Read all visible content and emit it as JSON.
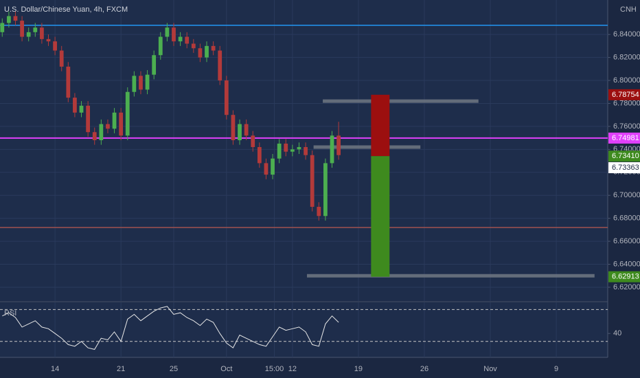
{
  "chart_data": [
    {
      "type": "candlestick",
      "title": "U.S. Dollar/Chinese Yuan, 4h, FXCM",
      "currency": "CNH",
      "x": [
        -4,
        -3.5,
        -3,
        -2.5,
        -2,
        -1.5,
        -1,
        -0.5,
        0,
        0.5,
        1,
        1.5,
        2,
        2.5,
        3,
        3.5,
        4,
        4.5,
        5,
        5.5,
        6,
        6.5,
        7,
        7.5,
        8,
        8.5,
        9,
        9.5,
        10,
        10.5,
        11,
        11.5,
        12,
        12.5,
        13,
        13.5,
        14,
        14.5,
        15,
        15.5,
        16,
        16.5,
        17,
        17.5,
        18,
        18.5,
        19,
        19.5,
        20,
        20.5,
        21,
        21.5
      ],
      "open": [
        6.842,
        6.85,
        6.856,
        6.852,
        6.838,
        6.842,
        6.846,
        6.836,
        6.834,
        6.826,
        6.812,
        6.785,
        6.772,
        6.778,
        6.755,
        6.748,
        6.762,
        6.758,
        6.772,
        6.752,
        6.79,
        6.804,
        6.792,
        6.805,
        6.822,
        6.838,
        6.846,
        6.834,
        6.838,
        6.832,
        6.828,
        6.82,
        6.83,
        6.826,
        6.8,
        6.77,
        6.748,
        6.762,
        6.752,
        6.742,
        6.728,
        6.718,
        6.732,
        6.745,
        6.738,
        6.74,
        6.742,
        6.735,
        6.69,
        6.682,
        6.728,
        6.752
      ],
      "high": [
        6.854,
        6.86,
        6.86,
        6.856,
        6.846,
        6.85,
        6.85,
        6.84,
        6.838,
        6.83,
        6.816,
        6.789,
        6.782,
        6.782,
        6.759,
        6.766,
        6.766,
        6.776,
        6.776,
        6.794,
        6.808,
        6.808,
        6.809,
        6.826,
        6.842,
        6.85,
        6.85,
        6.842,
        6.842,
        6.836,
        6.832,
        6.834,
        6.834,
        6.83,
        6.804,
        6.774,
        6.766,
        6.766,
        6.756,
        6.746,
        6.732,
        6.736,
        6.749,
        6.749,
        6.744,
        6.746,
        6.746,
        6.739,
        6.694,
        6.732,
        6.756,
        6.764
      ],
      "low": [
        6.838,
        6.846,
        6.848,
        6.834,
        6.834,
        6.838,
        6.832,
        6.83,
        6.822,
        6.808,
        6.781,
        6.768,
        6.768,
        6.751,
        6.744,
        6.744,
        6.754,
        6.754,
        6.748,
        6.748,
        6.786,
        6.788,
        6.788,
        6.801,
        6.818,
        6.834,
        6.83,
        6.83,
        6.828,
        6.824,
        6.816,
        6.816,
        6.822,
        6.796,
        6.766,
        6.744,
        6.744,
        6.748,
        6.738,
        6.724,
        6.714,
        6.714,
        6.728,
        6.734,
        6.734,
        6.736,
        6.731,
        6.686,
        6.678,
        6.678,
        6.724,
        6.731
      ],
      "close": [
        6.85,
        6.856,
        6.852,
        6.838,
        6.842,
        6.846,
        6.836,
        6.834,
        6.826,
        6.812,
        6.785,
        6.772,
        6.778,
        6.755,
        6.748,
        6.762,
        6.758,
        6.772,
        6.752,
        6.79,
        6.804,
        6.792,
        6.805,
        6.822,
        6.838,
        6.846,
        6.834,
        6.838,
        6.832,
        6.828,
        6.82,
        6.83,
        6.826,
        6.8,
        6.77,
        6.748,
        6.762,
        6.752,
        6.742,
        6.728,
        6.718,
        6.732,
        6.745,
        6.738,
        6.74,
        6.742,
        6.735,
        6.69,
        6.682,
        6.728,
        6.752,
        6.735
      ],
      "up_color": "#4caf50",
      "down_color": "#b33a3a",
      "xlim": [
        -4.17,
        41.9
      ],
      "xticks": [
        {
          "value": 0,
          "label": "14"
        },
        {
          "value": 5,
          "label": "21"
        },
        {
          "value": 9,
          "label": "25"
        },
        {
          "value": 13,
          "label": "Oct"
        },
        {
          "value": 16.625,
          "label": "15:00"
        },
        {
          "value": 18,
          "label": "12"
        },
        {
          "value": 23,
          "label": "19"
        },
        {
          "value": 28,
          "label": "26"
        },
        {
          "value": 33,
          "label": "Nov"
        },
        {
          "value": 38,
          "label": "9"
        }
      ],
      "ylim": [
        6.608,
        6.87
      ],
      "yticks": [
        {
          "value": 6.62,
          "label": "6.62000"
        },
        {
          "value": 6.64,
          "label": "6.64000"
        },
        {
          "value": 6.66,
          "label": "6.66000"
        },
        {
          "value": 6.68,
          "label": "6.68000"
        },
        {
          "value": 6.7,
          "label": "6.70000"
        },
        {
          "value": 6.72,
          "label": "6.72000"
        },
        {
          "value": 6.74,
          "label": "6.74000"
        },
        {
          "value": 6.76,
          "label": "6.76000"
        },
        {
          "value": 6.78,
          "label": "6.78000"
        },
        {
          "value": 6.8,
          "label": "6.80000"
        },
        {
          "value": 6.82,
          "label": "6.82000"
        },
        {
          "value": 6.84,
          "label": "6.84000"
        }
      ],
      "grid": true,
      "hlines": [
        {
          "value": 6.848,
          "color": "#2196f3"
        },
        {
          "value": 6.74981,
          "label": "6.74981",
          "color": "#e040fb"
        },
        {
          "value": 6.672,
          "color": "#a0524f"
        }
      ],
      "segments": [
        {
          "y": 6.782,
          "x": [
            20.3,
            32.1
          ]
        },
        {
          "y": 6.742,
          "x": [
            19.6,
            27.7
          ]
        },
        {
          "y": 6.63,
          "x": [
            19.1,
            40.9
          ]
        }
      ],
      "segment_color": "#6b7380",
      "position": {
        "x": [
          23.96,
          25.36
        ],
        "stop": {
          "value": 6.78754,
          "label": "6.78754"
        },
        "entry": {
          "value": 6.7341,
          "label": "6.73410"
        },
        "target": {
          "value": 6.62913,
          "label": "6.62913"
        },
        "stop_color": "#9c0f0f",
        "target_color": "#3e8a1e"
      },
      "last_price": {
        "value": 6.73363,
        "label": "6.73363"
      }
    },
    {
      "type": "line",
      "title": "RSI",
      "values": [
        62,
        66,
        60,
        48,
        52,
        56,
        48,
        46,
        40,
        34,
        26,
        24,
        30,
        22,
        20,
        34,
        32,
        42,
        30,
        58,
        64,
        56,
        62,
        68,
        72,
        74,
        64,
        66,
        60,
        56,
        50,
        58,
        54,
        40,
        28,
        22,
        38,
        34,
        30,
        26,
        24,
        36,
        48,
        44,
        46,
        48,
        42,
        26,
        24,
        52,
        62,
        54
      ],
      "color": "#e8e8e8",
      "ylim": [
        10,
        79
      ],
      "yticks": [
        40
      ],
      "bands": [
        30,
        70
      ]
    }
  ]
}
